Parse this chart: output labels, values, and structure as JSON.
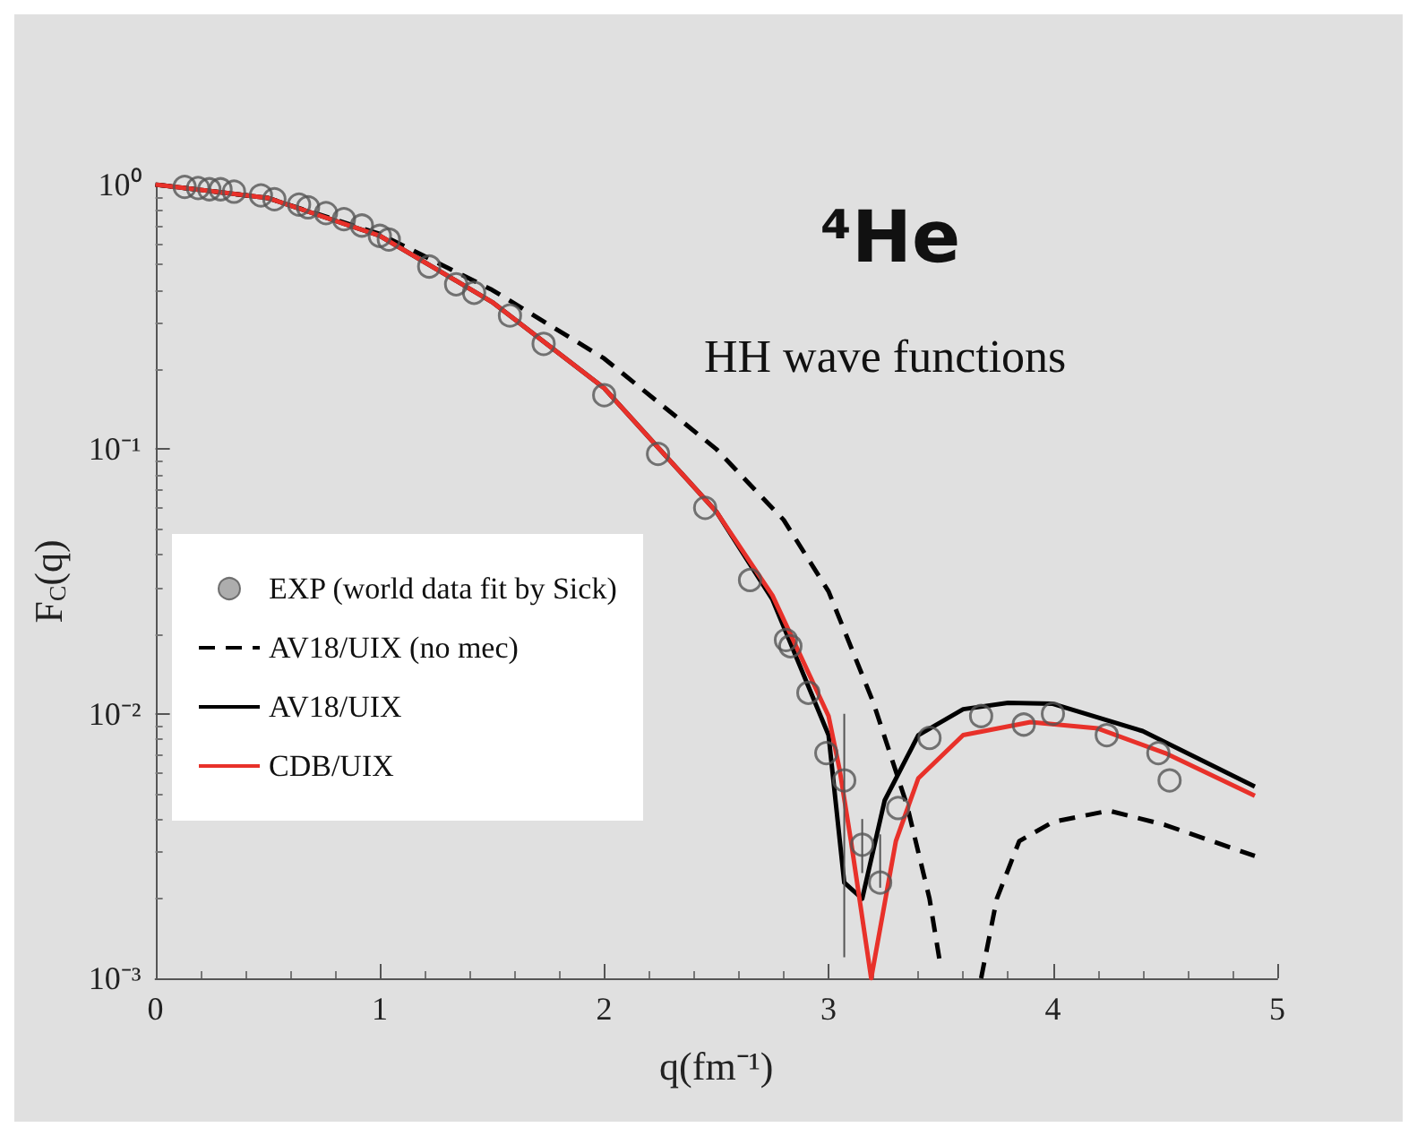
{
  "chart_data": {
    "type": "line",
    "xlabel": "q(fm⁻¹)",
    "ylabel": "F$_{C}$(q)",
    "log": "y",
    "xlim": [
      0,
      5
    ],
    "xticks": [
      0,
      1,
      2,
      3,
      4,
      5
    ],
    "ylim": [
      0.001,
      1
    ],
    "yticks": [
      {
        "value": 0.001,
        "label": "10⁻³"
      },
      {
        "value": 0.01,
        "label": "10⁻²"
      },
      {
        "value": 0.1,
        "label": "10⁻¹"
      },
      {
        "value": 1,
        "label": "10⁰"
      }
    ],
    "grid": false,
    "legend": "left",
    "annotations": [
      "⁴He",
      "HH wave functions"
    ],
    "series": [
      {
        "name": "EXP (world data fit by Sick)",
        "type": "scatter",
        "marker": "circle",
        "color": "#555555",
        "x": [
          0.13,
          0.19,
          0.24,
          0.29,
          0.35,
          0.47,
          0.53,
          0.64,
          0.68,
          0.76,
          0.84,
          0.92,
          1.0,
          1.04,
          1.22,
          1.34,
          1.42,
          1.58,
          1.73,
          2.0,
          2.24,
          2.45,
          2.65,
          2.81,
          2.83,
          2.91,
          2.99,
          3.07,
          3.15,
          3.23,
          3.31,
          3.45,
          3.68,
          3.87,
          4.0,
          4.24,
          4.47,
          4.52
        ],
        "values": [
          0.98,
          0.97,
          0.96,
          0.96,
          0.94,
          0.91,
          0.88,
          0.84,
          0.82,
          0.78,
          0.74,
          0.7,
          0.64,
          0.62,
          0.49,
          0.42,
          0.39,
          0.32,
          0.25,
          0.16,
          0.096,
          0.06,
          0.032,
          0.019,
          0.018,
          0.012,
          0.0071,
          0.0056,
          0.0032,
          0.0023,
          0.0044,
          0.0081,
          0.0098,
          0.0091,
          0.01,
          0.0083,
          0.0071,
          0.0056
        ],
        "errors": [
          null,
          null,
          null,
          null,
          null,
          null,
          null,
          null,
          null,
          null,
          null,
          null,
          null,
          null,
          null,
          null,
          null,
          null,
          null,
          null,
          null,
          null,
          null,
          null,
          null,
          null,
          null,
          [
            0.0012,
            0.01
          ],
          [
            0.0025,
            0.004
          ],
          [
            0.0022,
            0.0035
          ],
          null,
          null,
          null,
          null,
          null,
          null,
          null,
          null
        ]
      },
      {
        "name": "AV18/UIX (no mec)",
        "line_style": "dashed",
        "color": "#000000",
        "x": [
          0,
          0.5,
          1.0,
          1.5,
          2.0,
          2.5,
          2.8,
          3.0,
          3.2,
          3.35,
          3.45,
          3.5,
          3.6,
          3.68,
          3.75,
          3.85,
          4.0,
          4.25,
          4.5,
          4.9
        ],
        "values": [
          1.0,
          0.89,
          0.65,
          0.4,
          0.22,
          0.1,
          0.054,
          0.029,
          0.011,
          0.0045,
          0.002,
          0.0011,
          null,
          0.001,
          0.002,
          0.0033,
          0.0039,
          0.0043,
          0.0038,
          0.0029
        ]
      },
      {
        "name": "AV18/UIX",
        "line_style": "solid",
        "color": "#000000",
        "x": [
          0,
          0.5,
          1.0,
          1.5,
          2.0,
          2.5,
          2.75,
          3.0,
          3.07,
          3.15,
          3.25,
          3.4,
          3.6,
          3.8,
          4.0,
          4.4,
          4.9
        ],
        "values": [
          1.0,
          0.89,
          0.64,
          0.36,
          0.17,
          0.058,
          0.027,
          0.0083,
          0.0023,
          0.002,
          0.0047,
          0.0083,
          0.0104,
          0.011,
          0.0109,
          0.0086,
          0.0053
        ]
      },
      {
        "name": "CDB/UIX",
        "line_style": "solid",
        "color": "#e8312a",
        "x": [
          0,
          0.5,
          1.0,
          1.5,
          2.0,
          2.5,
          2.75,
          3.0,
          3.05,
          3.1,
          3.19,
          3.3,
          3.4,
          3.6,
          3.9,
          4.2,
          4.5,
          4.9
        ],
        "values": [
          1.0,
          0.89,
          0.64,
          0.36,
          0.17,
          0.058,
          0.028,
          0.0098,
          0.0061,
          0.0033,
          0.001,
          0.0033,
          0.0057,
          0.0083,
          0.0093,
          0.0088,
          0.0071,
          0.0049
        ]
      }
    ]
  }
}
